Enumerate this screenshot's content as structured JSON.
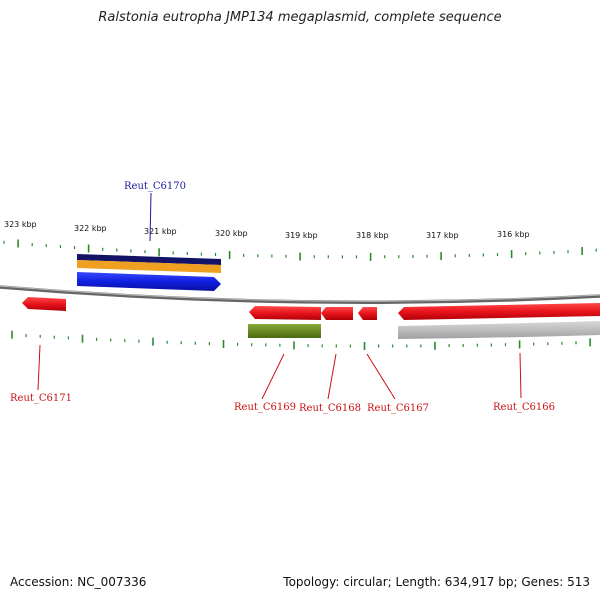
{
  "title": "Ralstonia eutropha JMP134 megaplasmid, complete sequence",
  "footer": {
    "accession": "Accession: NC_007336",
    "summary": "Topology: circular; Length: 634,917 bp; Genes: 513"
  },
  "colors": {
    "ticks": "#2a8a2a",
    "backbone": "#888888",
    "gene_red": "#e8141c",
    "gene_blue": "#1020e0",
    "navy": "#141466",
    "orange": "#f0a020",
    "olive": "#6a8a20",
    "gray_feature": "#b8b8b8",
    "label_blue": "#1a1aa0",
    "label_red": "#cc1111"
  },
  "scale_labels": [
    "323 kbp",
    "322 kbp",
    "321 kbp",
    "320 kbp",
    "319 kbp",
    "318 kbp",
    "317 kbp",
    "316 kbp"
  ],
  "genes": [
    {
      "id": "Reut_C6170",
      "color": "label_blue"
    },
    {
      "id": "Reut_C6171",
      "color": "label_red"
    },
    {
      "id": "Reut_C6169",
      "color": "label_red"
    },
    {
      "id": "Reut_C6168",
      "color": "label_red"
    },
    {
      "id": "Reut_C6167",
      "color": "label_red"
    },
    {
      "id": "Reut_C6166",
      "color": "label_red"
    }
  ]
}
